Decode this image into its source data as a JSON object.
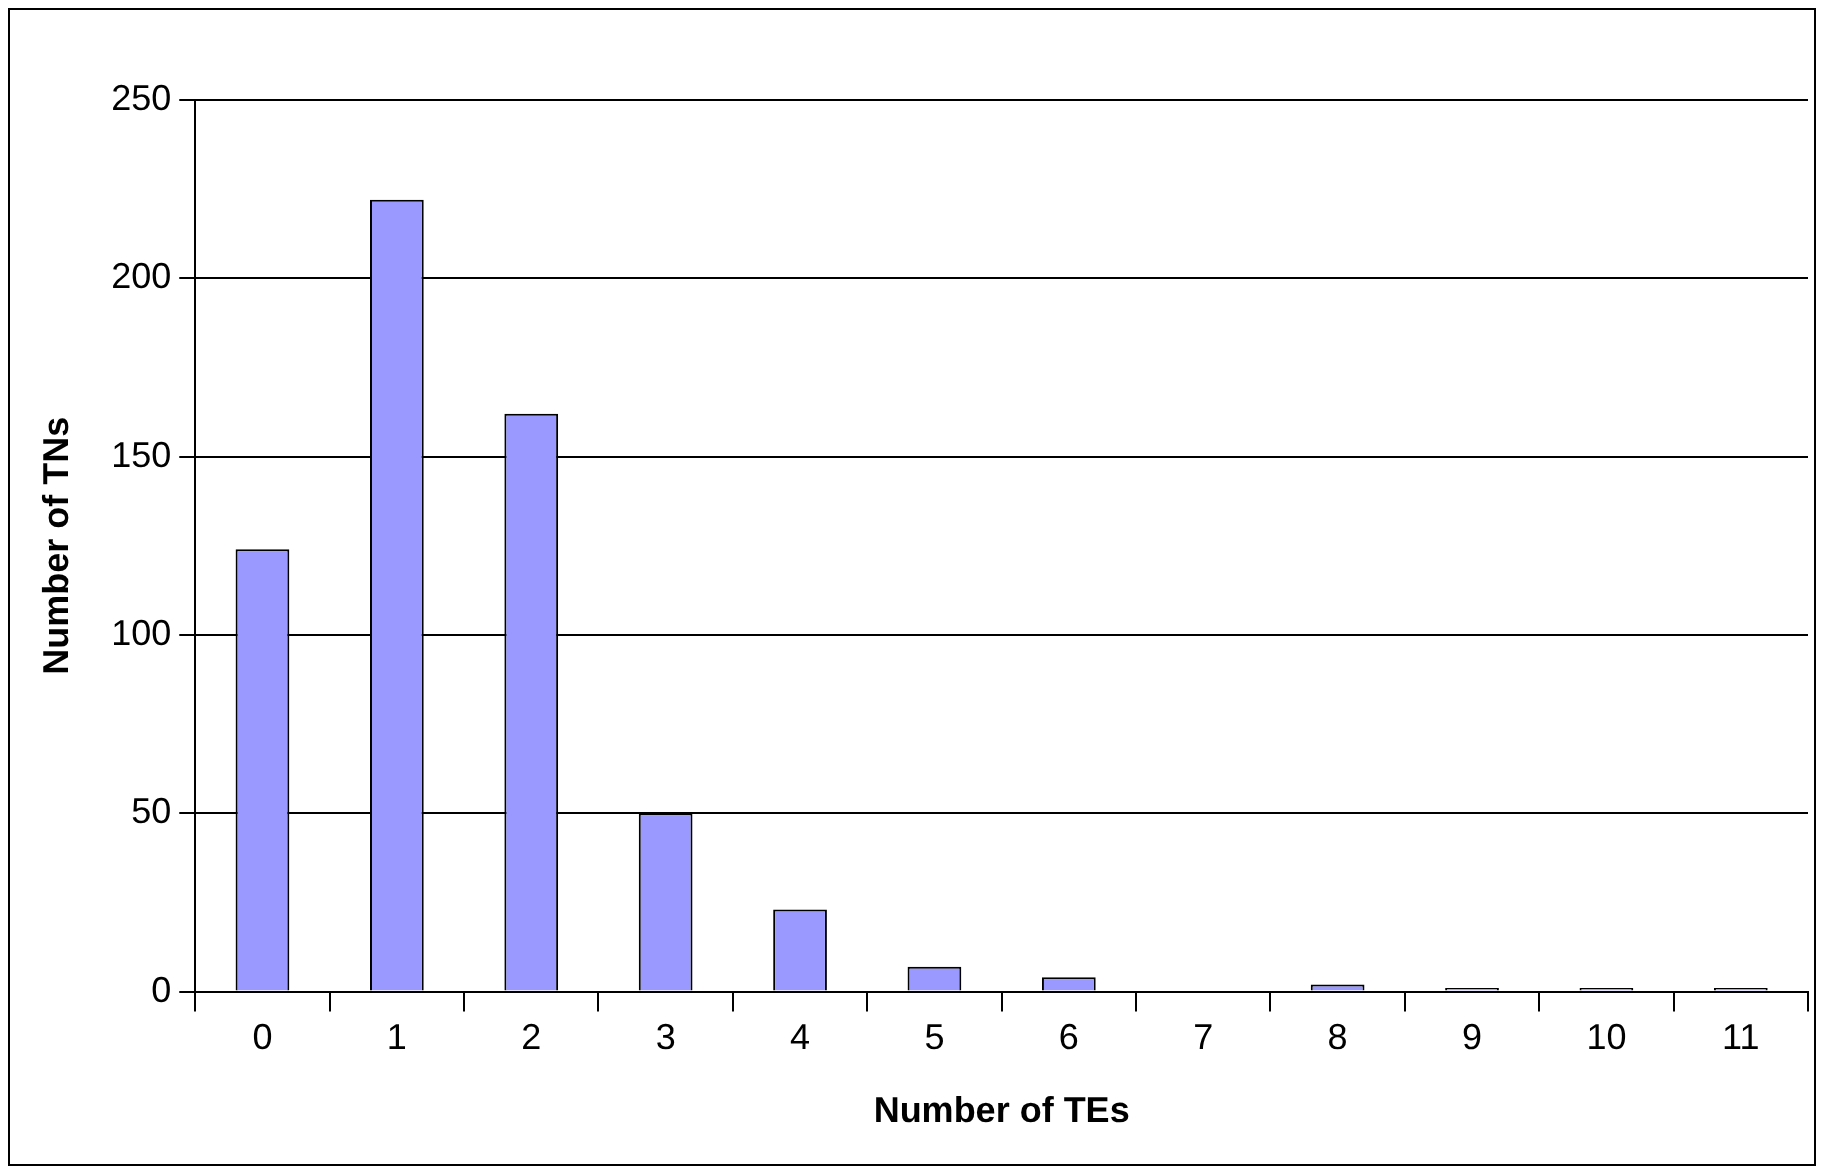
{
  "chart_data": {
    "type": "bar",
    "xlabel": "Number of TEs",
    "ylabel": "Number of TNs",
    "categories": [
      "0",
      "1",
      "2",
      "3",
      "4",
      "5",
      "6",
      "7",
      "8",
      "9",
      "10",
      "11"
    ],
    "values": [
      124,
      222,
      162,
      50,
      23,
      7,
      4,
      0,
      2,
      1,
      1,
      1
    ],
    "color": "#9999ff",
    "ylim": [
      0,
      250
    ],
    "yticks": [
      0,
      50,
      100,
      150,
      200,
      250
    ],
    "grid": "y",
    "legend": false
  }
}
